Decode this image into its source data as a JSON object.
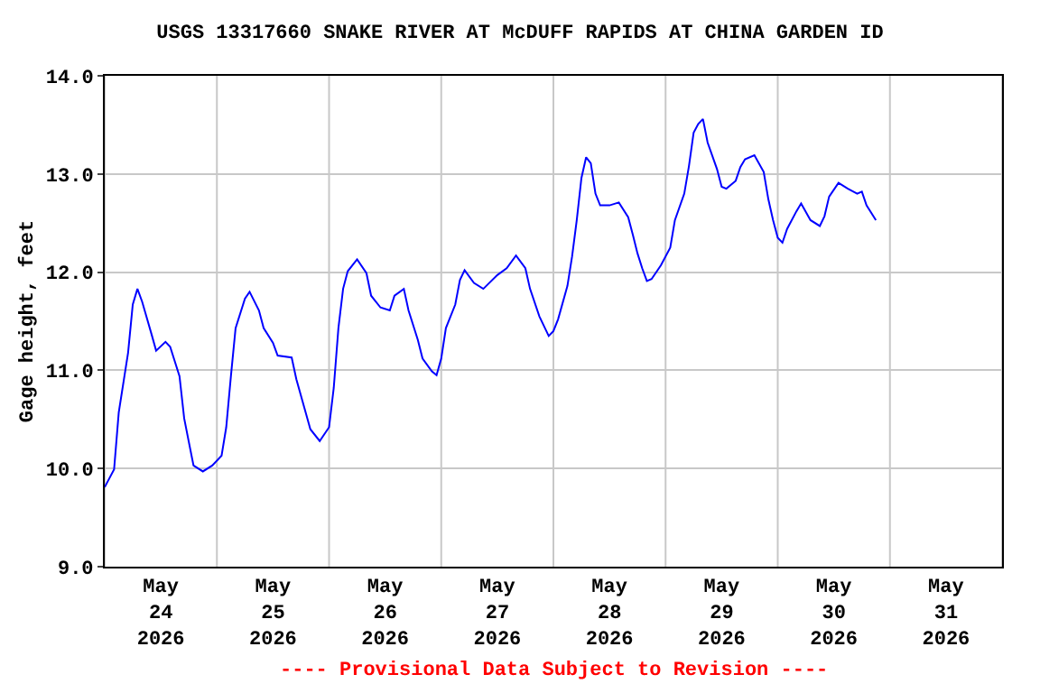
{
  "chart_data": {
    "type": "line",
    "title": "USGS 13317660 SNAKE RIVER AT McDUFF RAPIDS AT CHINA GARDEN ID",
    "ylabel": "Gage height, feet",
    "x": [
      "2026-05-24T00:00",
      "2026-05-24T02:00",
      "2026-05-24T03:00",
      "2026-05-24T05:00",
      "2026-05-24T06:00",
      "2026-05-24T07:00",
      "2026-05-24T08:00",
      "2026-05-24T10:00",
      "2026-05-24T11:00",
      "2026-05-24T13:00",
      "2026-05-24T14:00",
      "2026-05-24T16:00",
      "2026-05-24T17:00",
      "2026-05-24T18:00",
      "2026-05-24T19:00",
      "2026-05-24T21:00",
      "2026-05-24T23:00",
      "2026-05-25T01:00",
      "2026-05-25T02:00",
      "2026-05-25T03:00",
      "2026-05-25T04:00",
      "2026-05-25T06:00",
      "2026-05-25T07:00",
      "2026-05-25T09:00",
      "2026-05-25T10:00",
      "2026-05-25T12:00",
      "2026-05-25T13:00",
      "2026-05-25T16:00",
      "2026-05-25T17:00",
      "2026-05-25T19:00",
      "2026-05-25T20:00",
      "2026-05-25T22:00",
      "2026-05-26T00:00",
      "2026-05-26T01:00",
      "2026-05-26T02:00",
      "2026-05-26T03:00",
      "2026-05-26T04:00",
      "2026-05-26T06:00",
      "2026-05-26T08:00",
      "2026-05-26T09:00",
      "2026-05-26T11:00",
      "2026-05-26T13:00",
      "2026-05-26T14:00",
      "2026-05-26T16:00",
      "2026-05-26T17:00",
      "2026-05-26T19:00",
      "2026-05-26T20:00",
      "2026-05-26T22:00",
      "2026-05-26T23:00",
      "2026-05-27T00:00",
      "2026-05-27T01:00",
      "2026-05-27T03:00",
      "2026-05-27T04:00",
      "2026-05-27T05:00",
      "2026-05-27T07:00",
      "2026-05-27T09:00",
      "2026-05-27T12:00",
      "2026-05-27T14:00",
      "2026-05-27T16:00",
      "2026-05-27T18:00",
      "2026-05-27T19:00",
      "2026-05-27T21:00",
      "2026-05-27T23:00",
      "2026-05-28T00:00",
      "2026-05-28T01:00",
      "2026-05-28T03:00",
      "2026-05-28T04:00",
      "2026-05-28T05:00",
      "2026-05-28T06:00",
      "2026-05-28T07:00",
      "2026-05-28T08:00",
      "2026-05-28T09:00",
      "2026-05-28T10:00",
      "2026-05-28T12:00",
      "2026-05-28T14:00",
      "2026-05-28T16:00",
      "2026-05-28T17:00",
      "2026-05-28T18:00",
      "2026-05-28T19:00",
      "2026-05-28T20:00",
      "2026-05-28T21:00",
      "2026-05-28T23:00",
      "2026-05-29T01:00",
      "2026-05-29T02:00",
      "2026-05-29T04:00",
      "2026-05-29T05:00",
      "2026-05-29T06:00",
      "2026-05-29T07:00",
      "2026-05-29T08:00",
      "2026-05-29T09:00",
      "2026-05-29T11:00",
      "2026-05-29T12:00",
      "2026-05-29T13:00",
      "2026-05-29T15:00",
      "2026-05-29T16:00",
      "2026-05-29T17:00",
      "2026-05-29T19:00",
      "2026-05-29T21:00",
      "2026-05-29T22:00",
      "2026-05-29T23:00",
      "2026-05-30T00:00",
      "2026-05-30T01:00",
      "2026-05-30T02:00",
      "2026-05-30T04:00",
      "2026-05-30T05:00",
      "2026-05-30T07:00",
      "2026-05-30T09:00",
      "2026-05-30T10:00",
      "2026-05-30T11:00",
      "2026-05-30T13:00",
      "2026-05-30T15:00",
      "2026-05-30T17:00",
      "2026-05-30T18:00",
      "2026-05-30T19:00",
      "2026-05-30T21:00"
    ],
    "series": [
      {
        "color": "#0000ff",
        "values": [
          9.81,
          9.99,
          10.57,
          11.18,
          11.67,
          11.83,
          11.7,
          11.37,
          11.2,
          11.29,
          11.24,
          10.94,
          10.51,
          10.27,
          10.03,
          9.97,
          10.03,
          10.13,
          10.42,
          10.94,
          11.43,
          11.73,
          11.8,
          11.61,
          11.43,
          11.28,
          11.15,
          11.13,
          10.91,
          10.57,
          10.4,
          10.28,
          10.42,
          10.82,
          11.43,
          11.83,
          12.01,
          12.13,
          11.99,
          11.76,
          11.64,
          11.61,
          11.76,
          11.83,
          11.61,
          11.31,
          11.12,
          10.99,
          10.95,
          11.12,
          11.43,
          11.67,
          11.92,
          12.02,
          11.89,
          11.83,
          11.97,
          12.04,
          12.17,
          12.04,
          11.83,
          11.55,
          11.35,
          11.4,
          11.52,
          11.86,
          12.16,
          12.53,
          12.96,
          13.17,
          13.11,
          12.8,
          12.68,
          12.68,
          12.71,
          12.56,
          12.38,
          12.19,
          12.04,
          11.91,
          11.93,
          12.07,
          12.25,
          12.53,
          12.8,
          13.08,
          13.42,
          13.51,
          13.56,
          13.32,
          13.05,
          12.87,
          12.85,
          12.93,
          13.07,
          13.15,
          13.19,
          13.02,
          12.74,
          12.53,
          12.35,
          12.3,
          12.44,
          12.62,
          12.7,
          12.53,
          12.47,
          12.57,
          12.77,
          12.91,
          12.85,
          12.8,
          12.82,
          12.68,
          12.53
        ]
      }
    ],
    "xlim": [
      "2026-05-24T00:00",
      "2026-06-01T00:00"
    ],
    "xticks": [
      {
        "value": "2026-05-24T00:00",
        "label": null
      },
      {
        "value": "2026-05-24T12:00",
        "label": "May\n24\n2026"
      },
      {
        "value": "2026-05-25T00:00",
        "label": null
      },
      {
        "value": "2026-05-25T12:00",
        "label": "May\n25\n2026"
      },
      {
        "value": "2026-05-26T00:00",
        "label": null
      },
      {
        "value": "2026-05-26T12:00",
        "label": "May\n26\n2026"
      },
      {
        "value": "2026-05-27T00:00",
        "label": null
      },
      {
        "value": "2026-05-27T12:00",
        "label": "May\n27\n2026"
      },
      {
        "value": "2026-05-28T00:00",
        "label": null
      },
      {
        "value": "2026-05-28T12:00",
        "label": "May\n28\n2026"
      },
      {
        "value": "2026-05-29T00:00",
        "label": null
      },
      {
        "value": "2026-05-29T12:00",
        "label": "May\n29\n2026"
      },
      {
        "value": "2026-05-30T00:00",
        "label": null
      },
      {
        "value": "2026-05-30T12:00",
        "label": "May\n30\n2026"
      },
      {
        "value": "2026-05-31T00:00",
        "label": null
      },
      {
        "value": "2026-05-31T12:00",
        "label": "May\n31\n2026"
      },
      {
        "value": "2026-06-01T00:00",
        "label": null
      }
    ],
    "ylim": [
      9.0,
      14.0
    ],
    "yticks": [
      {
        "value": 9.0,
        "label": "9.0"
      },
      {
        "value": 10.0,
        "label": "10.0"
      },
      {
        "value": 11.0,
        "label": "11.0"
      },
      {
        "value": 12.0,
        "label": "12.0"
      },
      {
        "value": 13.0,
        "label": "13.0"
      },
      {
        "value": 14.0,
        "label": "14.0"
      }
    ],
    "grid": true,
    "annotations": [
      "---- Provisional Data Subject to Revision ----"
    ]
  }
}
